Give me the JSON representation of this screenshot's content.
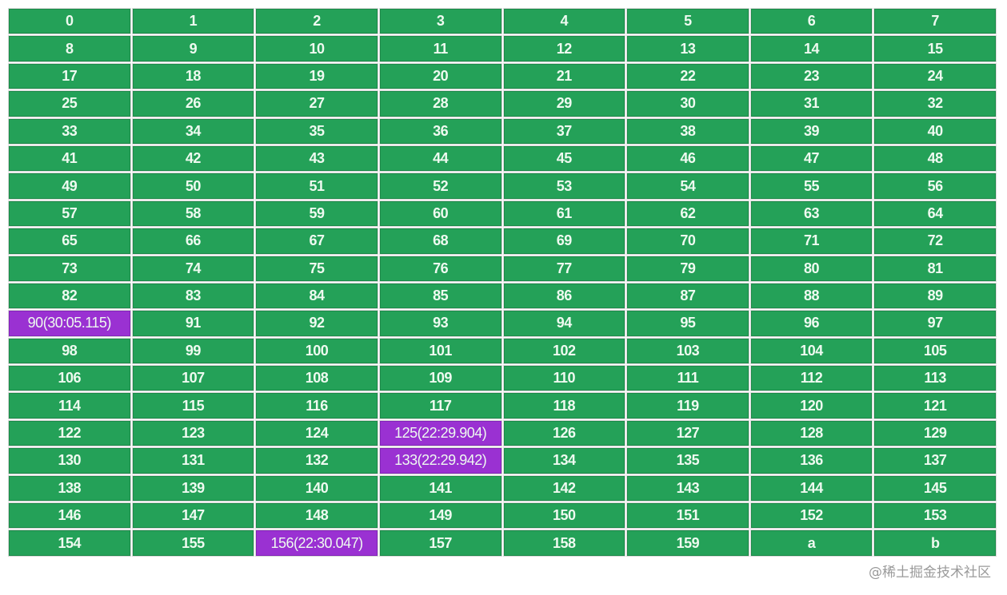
{
  "colors": {
    "cell_default": "#24a158",
    "cell_highlight": "#9a31d2",
    "text": "#eefaf0"
  },
  "rows": [
    [
      {
        "label": "0"
      },
      {
        "label": "1"
      },
      {
        "label": "2"
      },
      {
        "label": "3"
      },
      {
        "label": "4"
      },
      {
        "label": "5"
      },
      {
        "label": "6"
      },
      {
        "label": "7"
      }
    ],
    [
      {
        "label": "8"
      },
      {
        "label": "9"
      },
      {
        "label": "10"
      },
      {
        "label": "11"
      },
      {
        "label": "12"
      },
      {
        "label": "13"
      },
      {
        "label": "14"
      },
      {
        "label": "15"
      }
    ],
    [
      {
        "label": "17"
      },
      {
        "label": "18"
      },
      {
        "label": "19"
      },
      {
        "label": "20"
      },
      {
        "label": "21"
      },
      {
        "label": "22"
      },
      {
        "label": "23"
      },
      {
        "label": "24"
      }
    ],
    [
      {
        "label": "25"
      },
      {
        "label": "26"
      },
      {
        "label": "27"
      },
      {
        "label": "28"
      },
      {
        "label": "29"
      },
      {
        "label": "30"
      },
      {
        "label": "31"
      },
      {
        "label": "32"
      }
    ],
    [
      {
        "label": "33"
      },
      {
        "label": "34"
      },
      {
        "label": "35"
      },
      {
        "label": "36"
      },
      {
        "label": "37"
      },
      {
        "label": "38"
      },
      {
        "label": "39"
      },
      {
        "label": "40"
      }
    ],
    [
      {
        "label": "41"
      },
      {
        "label": "42"
      },
      {
        "label": "43"
      },
      {
        "label": "44"
      },
      {
        "label": "45"
      },
      {
        "label": "46"
      },
      {
        "label": "47"
      },
      {
        "label": "48"
      }
    ],
    [
      {
        "label": "49"
      },
      {
        "label": "50"
      },
      {
        "label": "51"
      },
      {
        "label": "52"
      },
      {
        "label": "53"
      },
      {
        "label": "54"
      },
      {
        "label": "55"
      },
      {
        "label": "56"
      }
    ],
    [
      {
        "label": "57"
      },
      {
        "label": "58"
      },
      {
        "label": "59"
      },
      {
        "label": "60"
      },
      {
        "label": "61"
      },
      {
        "label": "62"
      },
      {
        "label": "63"
      },
      {
        "label": "64"
      }
    ],
    [
      {
        "label": "65"
      },
      {
        "label": "66"
      },
      {
        "label": "67"
      },
      {
        "label": "68"
      },
      {
        "label": "69"
      },
      {
        "label": "70"
      },
      {
        "label": "71"
      },
      {
        "label": "72"
      }
    ],
    [
      {
        "label": "73"
      },
      {
        "label": "74"
      },
      {
        "label": "75"
      },
      {
        "label": "76"
      },
      {
        "label": "77"
      },
      {
        "label": "79"
      },
      {
        "label": "80"
      },
      {
        "label": "81"
      }
    ],
    [
      {
        "label": "82"
      },
      {
        "label": "83"
      },
      {
        "label": "84"
      },
      {
        "label": "85"
      },
      {
        "label": "86"
      },
      {
        "label": "87"
      },
      {
        "label": "88"
      },
      {
        "label": "89"
      }
    ],
    [
      {
        "label": "90(30:05.115)",
        "highlighted": true
      },
      {
        "label": "91"
      },
      {
        "label": "92"
      },
      {
        "label": "93"
      },
      {
        "label": "94"
      },
      {
        "label": "95"
      },
      {
        "label": "96"
      },
      {
        "label": "97"
      }
    ],
    [
      {
        "label": "98"
      },
      {
        "label": "99"
      },
      {
        "label": "100"
      },
      {
        "label": "101"
      },
      {
        "label": "102"
      },
      {
        "label": "103"
      },
      {
        "label": "104"
      },
      {
        "label": "105"
      }
    ],
    [
      {
        "label": "106"
      },
      {
        "label": "107"
      },
      {
        "label": "108"
      },
      {
        "label": "109"
      },
      {
        "label": "110"
      },
      {
        "label": "111"
      },
      {
        "label": "112"
      },
      {
        "label": "113"
      }
    ],
    [
      {
        "label": "114"
      },
      {
        "label": "115"
      },
      {
        "label": "116"
      },
      {
        "label": "117"
      },
      {
        "label": "118"
      },
      {
        "label": "119"
      },
      {
        "label": "120"
      },
      {
        "label": "121"
      }
    ],
    [
      {
        "label": "122"
      },
      {
        "label": "123"
      },
      {
        "label": "124"
      },
      {
        "label": "125(22:29.904)",
        "highlighted": true
      },
      {
        "label": "126"
      },
      {
        "label": "127"
      },
      {
        "label": "128"
      },
      {
        "label": "129"
      }
    ],
    [
      {
        "label": "130"
      },
      {
        "label": "131"
      },
      {
        "label": "132"
      },
      {
        "label": "133(22:29.942)",
        "highlighted": true
      },
      {
        "label": "134"
      },
      {
        "label": "135"
      },
      {
        "label": "136"
      },
      {
        "label": "137"
      }
    ],
    [
      {
        "label": "138"
      },
      {
        "label": "139"
      },
      {
        "label": "140"
      },
      {
        "label": "141"
      },
      {
        "label": "142"
      },
      {
        "label": "143"
      },
      {
        "label": "144"
      },
      {
        "label": "145"
      }
    ],
    [
      {
        "label": "146"
      },
      {
        "label": "147"
      },
      {
        "label": "148"
      },
      {
        "label": "149"
      },
      {
        "label": "150"
      },
      {
        "label": "151"
      },
      {
        "label": "152"
      },
      {
        "label": "153"
      }
    ],
    [
      {
        "label": "154"
      },
      {
        "label": "155"
      },
      {
        "label": "156(22:30.047)",
        "highlighted": true
      },
      {
        "label": "157"
      },
      {
        "label": "158"
      },
      {
        "label": "159"
      },
      {
        "label": "a"
      },
      {
        "label": "b"
      }
    ]
  ],
  "watermark": "@稀土掘金技术社区"
}
